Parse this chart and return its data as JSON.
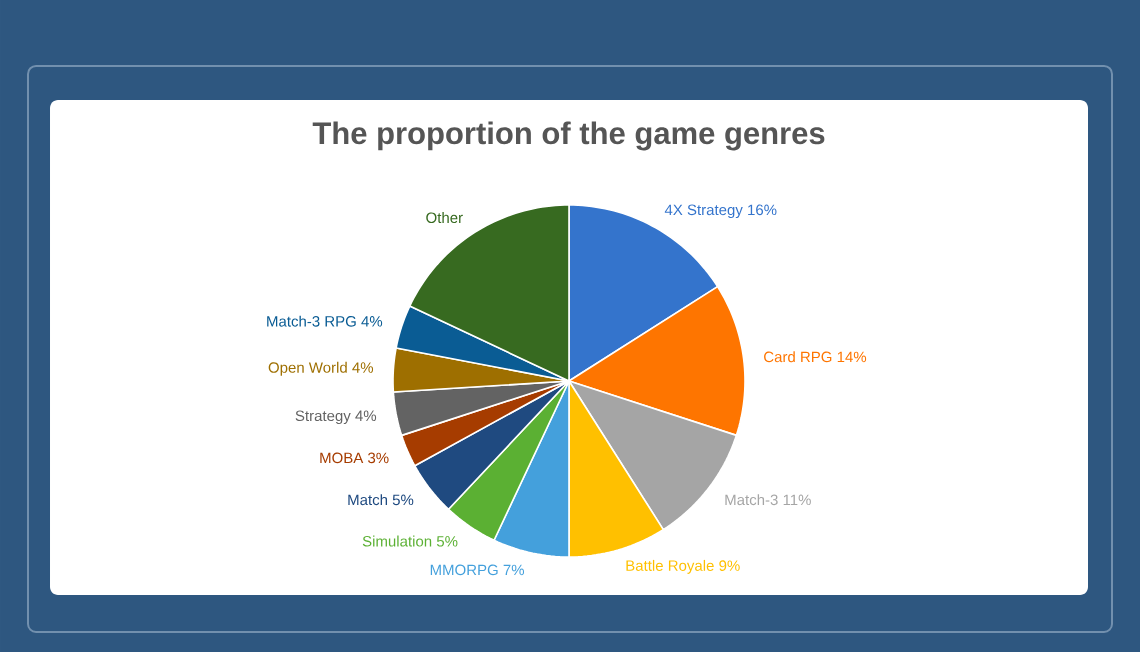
{
  "chart_data": {
    "type": "pie",
    "title": "The proportion of the game genres",
    "categories": [
      "4X Strategy",
      "Card RPG",
      "Match-3",
      "Battle Royale",
      "MMORPG",
      "Simulation",
      "Match",
      "MOBA",
      "Strategy",
      "Open World",
      "Match-3 RPG",
      "Other"
    ],
    "values": [
      16,
      14,
      11,
      9,
      7,
      5,
      5,
      3,
      4,
      4,
      4,
      18
    ],
    "colors": [
      "#3474cc",
      "#fe7500",
      "#a5a5a5",
      "#ffc000",
      "#44a0dc",
      "#5bb033",
      "#1f4a80",
      "#a63c00",
      "#636363",
      "#9e6f00",
      "#0a5c94",
      "#376a20"
    ],
    "value_labels": [
      "16%",
      "14%",
      "11%",
      "9%",
      "7%",
      "5%",
      "5%",
      "3%",
      "4%",
      "4%",
      "4%",
      null
    ]
  }
}
